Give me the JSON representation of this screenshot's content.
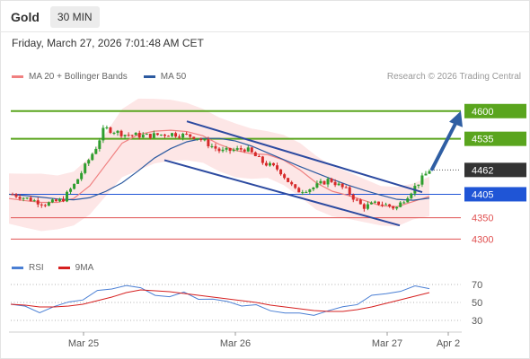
{
  "header": {
    "symbol": "Gold",
    "timeframe": "30 MIN",
    "timestamp": "Friday, March 27, 2026 7:01:48 AM CET"
  },
  "legend": {
    "items": [
      {
        "label": "MA 20 + Bollinger Bands",
        "color": "#f08080"
      },
      {
        "label": "MA 50",
        "color": "#2c5aa0"
      }
    ],
    "credit": "Research © 2026 Trading Central"
  },
  "rsi_legend": {
    "items": [
      {
        "label": "RSI",
        "color": "#4a7fd4"
      },
      {
        "label": "9MA",
        "color": "#d62020"
      }
    ]
  },
  "colors": {
    "up": "#2e9e2e",
    "down": "#d62a2a",
    "green_level": "#5aa51e",
    "blue_level": "#1f55d6",
    "red_level": "#e05050",
    "last_price": "#333333",
    "arrow": "#2f5ea3",
    "trend": "#2c4aa0",
    "band_fill": "#fde6e6"
  },
  "chart_data": [
    {
      "type": "candlestick",
      "title": "Gold",
      "ylim": [
        4265,
        4650
      ],
      "x_ticks": [
        "Mar 25",
        "Mar 26",
        "Mar 27",
        "Apr 2"
      ],
      "levels": [
        {
          "value": 4600,
          "label": "4600",
          "kind": "target"
        },
        {
          "value": 4535,
          "label": "4535",
          "kind": "target"
        },
        {
          "value": 4462,
          "label": "4462",
          "kind": "last"
        },
        {
          "value": 4405,
          "label": "4405",
          "kind": "pivot"
        },
        {
          "value": 4350,
          "label": "4350",
          "kind": "support"
        },
        {
          "value": 4300,
          "label": "4300",
          "kind": "support"
        }
      ],
      "series": [
        {
          "name": "MA 20 + Bollinger Bands",
          "values": [
            4395,
            4390,
            4386,
            4386,
            4395,
            4425,
            4475,
            4525,
            4545,
            4553,
            4555,
            4552,
            4542,
            4522,
            4508,
            4500,
            4498,
            4485,
            4462,
            4432,
            4412,
            4402,
            4390,
            4378,
            4376,
            4388,
            4400
          ]
        },
        {
          "name": "MA 50",
          "values": [
            4405,
            4402,
            4398,
            4394,
            4392,
            4397,
            4412,
            4432,
            4460,
            4490,
            4512,
            4528,
            4536,
            4536,
            4530,
            4518,
            4502,
            4486,
            4470,
            4455,
            4440,
            4426,
            4414,
            4403,
            4393,
            4391,
            4396
          ]
        }
      ],
      "trend_channel": {
        "upper": [
          4576,
          4410
        ],
        "lower": [
          4485,
          4332
        ]
      },
      "projection": {
        "from": 4462,
        "to": 4600
      }
    },
    {
      "type": "line",
      "title": "RSI",
      "ylim": [
        20,
        80
      ],
      "y_ticks": [
        "70",
        "50",
        "30"
      ],
      "series": [
        {
          "name": "RSI",
          "values": [
            48,
            44,
            41,
            44,
            50,
            55,
            61,
            66,
            70,
            64,
            60,
            56,
            60,
            56,
            52,
            51,
            48,
            45,
            42,
            39,
            36,
            38,
            40,
            44,
            50,
            56,
            60,
            64,
            66,
            67
          ]
        },
        {
          "name": "9MA",
          "values": [
            48,
            47,
            45,
            45,
            46,
            48,
            52,
            56,
            61,
            64,
            63,
            62,
            60,
            58,
            56,
            54,
            52,
            50,
            47,
            45,
            43,
            41,
            40,
            40,
            42,
            45,
            49,
            53,
            57,
            61
          ]
        }
      ]
    }
  ]
}
